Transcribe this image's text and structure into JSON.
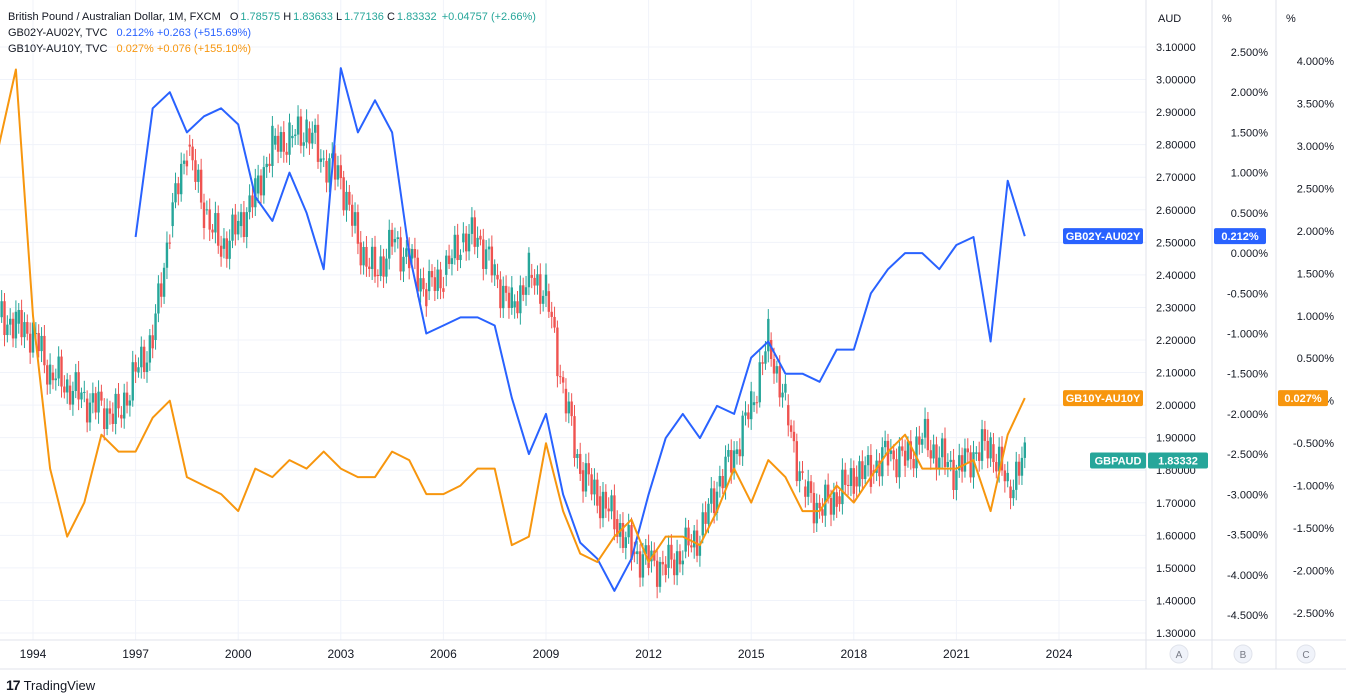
{
  "legend": {
    "main": {
      "name": "British Pound / Australian Dollar, 1M, FXCM",
      "o_label": "O",
      "o": "1.78575",
      "h_label": "H",
      "h": "1.83633",
      "l_label": "L",
      "l": "1.77136",
      "c_label": "C",
      "c": "1.83332",
      "change": "+0.04757 (+2.66%)"
    },
    "s2": {
      "name": "GB02Y-AU02Y, TVC",
      "value": "0.212%",
      "change": "+0.263 (+515.69%)"
    },
    "s3": {
      "name": "GB10Y-AU10Y, TVC",
      "value": "0.027%",
      "change": "+0.076 (+155.10%)"
    }
  },
  "axis_headers": {
    "a": "AUD",
    "b": "%",
    "c": "%"
  },
  "scale_buttons": [
    "A",
    "B",
    "C"
  ],
  "footer": {
    "brand": "TradingView",
    "logo": "17"
  },
  "colors": {
    "up": "#26a69a",
    "down": "#ef5350",
    "gb02": "#2962ff",
    "gb10": "#f7960e",
    "grid": "#f0f3fa",
    "text": "#131722"
  },
  "chart_data": {
    "type": "line",
    "title": "British Pound / Australian Dollar, 1M, FXCM",
    "x_ticks": [
      "1994",
      "1997",
      "2000",
      "2003",
      "2006",
      "2009",
      "2012",
      "2015",
      "2018",
      "2021",
      "2024"
    ],
    "axes": {
      "A": {
        "unit": "AUD",
        "range": [
          1.3,
          3.1
        ],
        "ticks": [
          "1.30000",
          "1.40000",
          "1.50000",
          "1.60000",
          "1.70000",
          "1.80000",
          "1.90000",
          "2.00000",
          "2.10000",
          "2.20000",
          "2.30000",
          "2.40000",
          "2.50000",
          "2.60000",
          "2.70000",
          "2.80000",
          "2.90000",
          "3.00000",
          "3.10000"
        ]
      },
      "B": {
        "unit": "%",
        "range": [
          -4.5,
          2.5
        ],
        "ticks": [
          "-4.500%",
          "-4.000%",
          "-3.500%",
          "-3.000%",
          "-2.500%",
          "-2.000%",
          "-1.500%",
          "-1.000%",
          "-0.500%",
          "0.000%",
          "0.500%",
          "1.000%",
          "1.500%",
          "2.000%",
          "2.500%"
        ]
      },
      "C": {
        "unit": "%",
        "range": [
          -2.5,
          4.0
        ],
        "ticks": [
          "-2.500%",
          "-2.000%",
          "-1.500%",
          "-1.000%",
          "-0.500%",
          "0.000%",
          "0.500%",
          "1.000%",
          "1.500%",
          "2.000%",
          "2.500%",
          "3.000%",
          "3.500%",
          "4.000%"
        ]
      }
    },
    "series": [
      {
        "name": "GBPAUD",
        "type": "candlestick",
        "axis": "A",
        "last": "1.83332",
        "x": [
          1993.0,
          1993.5,
          1994.0,
          1994.5,
          1995.0,
          1995.5,
          1996.0,
          1996.5,
          1997.0,
          1997.5,
          1998.0,
          1998.5,
          1999.0,
          1999.5,
          2000.0,
          2000.5,
          2001.0,
          2001.5,
          2002.0,
          2002.5,
          2003.0,
          2003.5,
          2004.0,
          2004.5,
          2005.0,
          2005.5,
          2006.0,
          2006.5,
          2007.0,
          2007.5,
          2008.0,
          2008.5,
          2009.0,
          2009.5,
          2010.0,
          2010.5,
          2011.0,
          2011.5,
          2012.0,
          2012.5,
          2013.0,
          2013.5,
          2014.0,
          2014.5,
          2015.0,
          2015.5,
          2016.0,
          2016.5,
          2017.0,
          2017.5,
          2018.0,
          2018.5,
          2019.0,
          2019.5,
          2020.0,
          2020.5,
          2021.0,
          2021.5,
          2022.0,
          2022.5,
          2023.0
        ],
        "values": [
          2.27,
          2.25,
          2.22,
          2.1,
          2.06,
          2.02,
          1.99,
          1.97,
          2.1,
          2.2,
          2.55,
          2.8,
          2.6,
          2.48,
          2.55,
          2.65,
          2.8,
          2.82,
          2.85,
          2.75,
          2.7,
          2.5,
          2.4,
          2.5,
          2.45,
          2.35,
          2.4,
          2.5,
          2.52,
          2.4,
          2.3,
          2.4,
          2.35,
          2.05,
          1.8,
          1.72,
          1.65,
          1.55,
          1.52,
          1.5,
          1.55,
          1.6,
          1.75,
          1.85,
          2.0,
          2.2,
          2.0,
          1.75,
          1.68,
          1.72,
          1.78,
          1.8,
          1.85,
          1.83,
          1.9,
          1.84,
          1.8,
          1.85,
          1.88,
          1.75,
          1.83
        ]
      },
      {
        "name": "GB02Y-AU02Y",
        "type": "line",
        "axis": "B",
        "last": "0.212%",
        "x": [
          1997.0,
          1997.5,
          1998.0,
          1998.5,
          1999.0,
          1999.5,
          2000.0,
          2000.5,
          2001.0,
          2001.5,
          2002.0,
          2002.5,
          2003.0,
          2003.5,
          2004.0,
          2004.5,
          2005.0,
          2005.5,
          2006.0,
          2006.5,
          2007.0,
          2007.5,
          2008.0,
          2008.5,
          2009.0,
          2009.5,
          2010.0,
          2010.5,
          2011.0,
          2011.5,
          2012.0,
          2012.5,
          2013.0,
          2013.5,
          2014.0,
          2014.5,
          2015.0,
          2015.5,
          2016.0,
          2016.5,
          2017.0,
          2017.5,
          2018.0,
          2018.5,
          2019.0,
          2019.5,
          2020.0,
          2020.5,
          2021.0,
          2021.5,
          2022.0,
          2022.5,
          2023.0
        ],
        "values": [
          0.2,
          1.8,
          2.0,
          1.5,
          1.7,
          1.8,
          1.6,
          0.7,
          0.4,
          1.0,
          0.5,
          -0.2,
          2.3,
          1.5,
          1.9,
          1.5,
          0.0,
          -1.0,
          -0.9,
          -0.8,
          -0.8,
          -0.9,
          -1.8,
          -2.5,
          -2.0,
          -3.0,
          -3.6,
          -3.8,
          -4.2,
          -3.8,
          -3.0,
          -2.3,
          -2.0,
          -2.3,
          -1.9,
          -2.0,
          -1.3,
          -1.1,
          -1.5,
          -1.5,
          -1.6,
          -1.2,
          -1.2,
          -0.5,
          -0.2,
          0.0,
          0.0,
          -0.2,
          0.1,
          0.2,
          -1.1,
          0.9,
          0.21
        ]
      },
      {
        "name": "GB10Y-AU10Y",
        "type": "line",
        "axis": "C",
        "last": "0.027%",
        "x": [
          1993.0,
          1993.5,
          1994.0,
          1994.5,
          1995.0,
          1995.5,
          1996.0,
          1996.5,
          1997.0,
          1997.5,
          1998.0,
          1998.5,
          1999.0,
          1999.5,
          2000.0,
          2000.5,
          2001.0,
          2001.5,
          2002.0,
          2002.5,
          2003.0,
          2003.5,
          2004.0,
          2004.5,
          2005.0,
          2005.5,
          2006.0,
          2006.5,
          2007.0,
          2007.5,
          2008.0,
          2008.5,
          2009.0,
          2009.5,
          2010.0,
          2010.5,
          2011.0,
          2011.5,
          2012.0,
          2012.5,
          2013.0,
          2013.5,
          2014.0,
          2014.5,
          2015.0,
          2015.5,
          2016.0,
          2016.5,
          2017.0,
          2017.5,
          2018.0,
          2018.5,
          2019.0,
          2019.5,
          2020.0,
          2020.5,
          2021.0,
          2021.5,
          2022.0,
          2022.5,
          2023.0
        ],
        "values": [
          3.0,
          3.9,
          1.0,
          -0.8,
          -1.6,
          -1.2,
          -0.4,
          -0.6,
          -0.6,
          -0.2,
          0.0,
          -0.9,
          -1.0,
          -1.1,
          -1.3,
          -0.8,
          -0.9,
          -0.7,
          -0.8,
          -0.6,
          -0.8,
          -0.9,
          -0.9,
          -0.6,
          -0.7,
          -1.1,
          -1.1,
          -1.0,
          -0.8,
          -0.8,
          -1.7,
          -1.6,
          -0.5,
          -1.3,
          -1.8,
          -1.9,
          -1.6,
          -1.4,
          -1.9,
          -1.6,
          -1.6,
          -1.7,
          -1.3,
          -0.8,
          -1.2,
          -0.7,
          -0.9,
          -1.3,
          -1.3,
          -1.0,
          -1.2,
          -0.9,
          -0.6,
          -0.4,
          -0.8,
          -0.8,
          -0.8,
          -0.7,
          -1.3,
          -0.4,
          0.03
        ]
      }
    ],
    "grid": true
  }
}
